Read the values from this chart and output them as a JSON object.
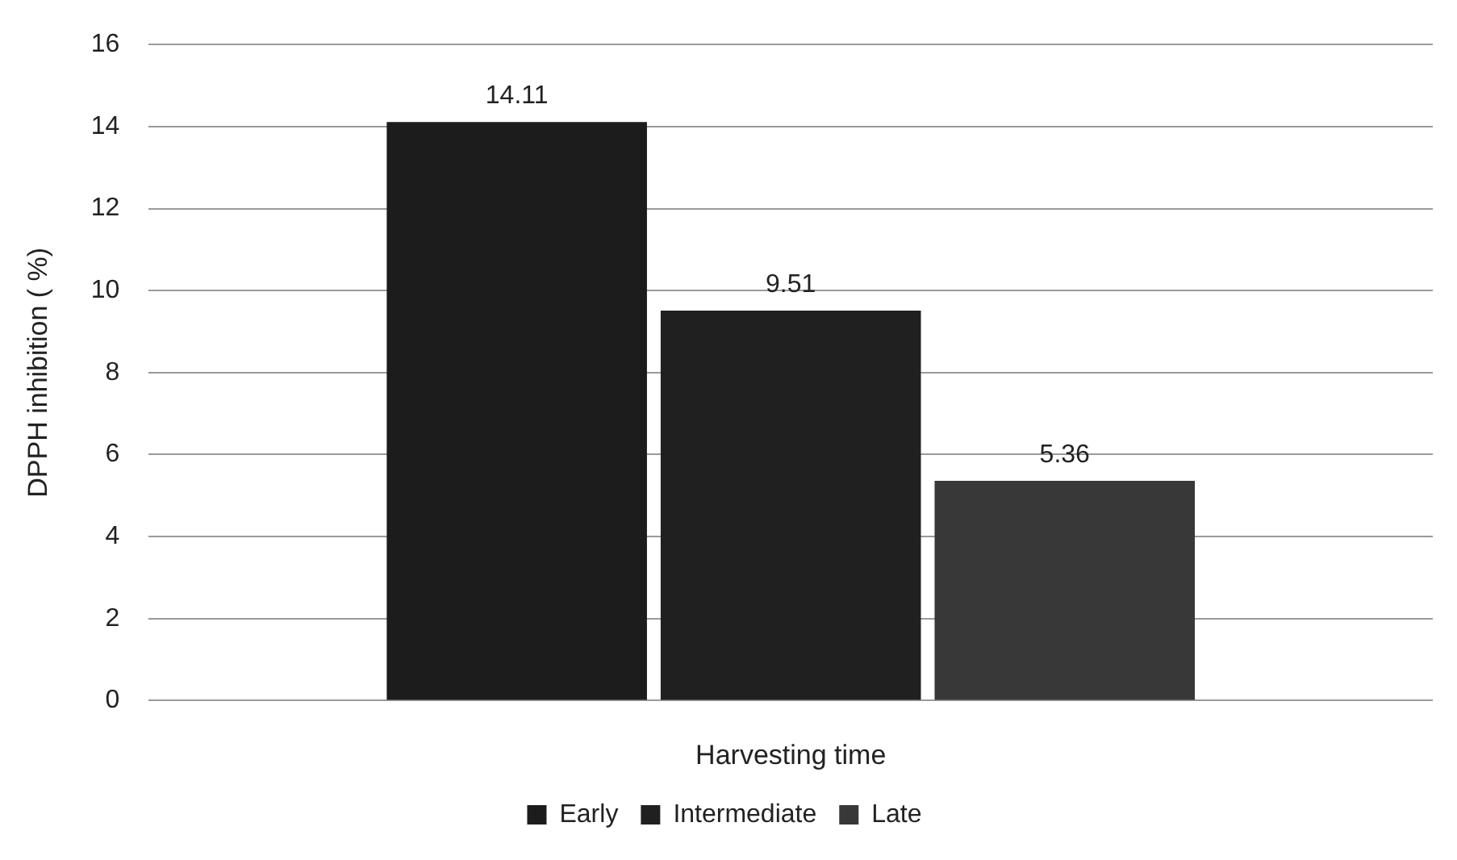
{
  "chart_data": {
    "type": "bar",
    "xlabel": "Harvesting time",
    "ylabel": "DPPH inhibition ( %)",
    "categories": [
      null
    ],
    "series": [
      {
        "name": "Early",
        "color": "#1c1c1c",
        "values": [
          14.11
        ]
      },
      {
        "name": "Intermediate",
        "color": "#202020",
        "values": [
          9.51
        ]
      },
      {
        "name": "Late",
        "color": "#383838",
        "values": [
          5.36
        ]
      }
    ],
    "ylim": [
      0,
      16
    ],
    "yticks": [
      0,
      2,
      4,
      6,
      8,
      10,
      12,
      14,
      16
    ],
    "grid": "y",
    "legend": "bottom",
    "data_labels": true
  }
}
